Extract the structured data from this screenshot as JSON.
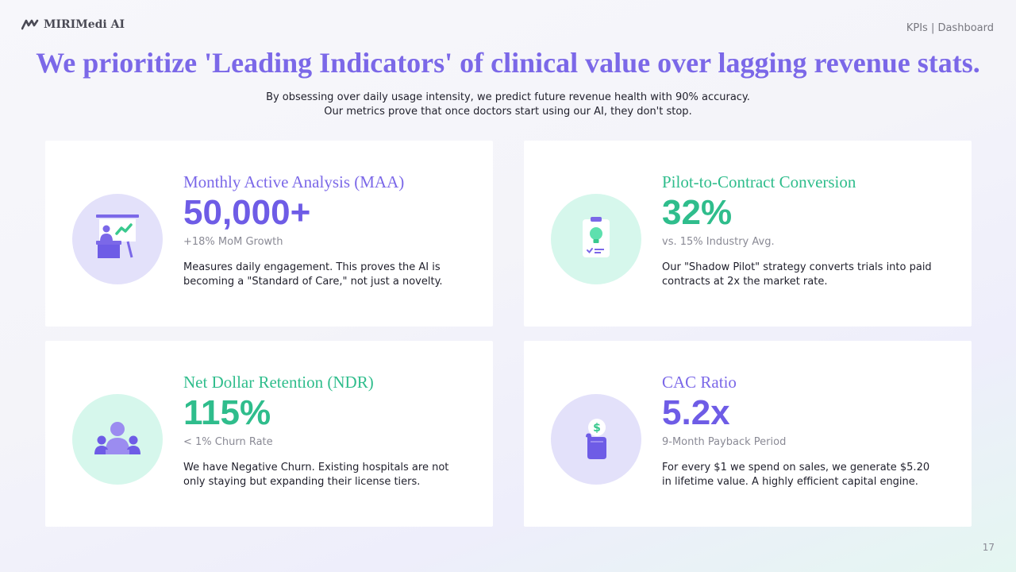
{
  "brand": {
    "name": "MIRIMedi AI",
    "color": "#7b68e8"
  },
  "header": {
    "section_label": "KPIs | Dashboard"
  },
  "headline": "We prioritize 'Leading Indicators' of clinical value over lagging revenue stats.",
  "subheadline": {
    "line1": "By obsessing over daily usage intensity, we predict future revenue health with 90% accuracy.",
    "line2": "Our metrics prove that once doctors start using our AI, they don't stop."
  },
  "cards": [
    {
      "title": "Monthly Active Analysis (MAA)",
      "metric": "50,000+",
      "sublabel": "+18% MoM Growth",
      "description": "Measures daily engagement. This proves the AI is becoming a \"Standard of Care,\" not just a novelty.",
      "icon": "presentation-board-icon",
      "accent": "#6e5ce6"
    },
    {
      "title": "Pilot-to-Contract Conversion",
      "metric": "32%",
      "sublabel": "vs. 15% Industry Avg.",
      "description": "Our \"Shadow Pilot\" strategy converts trials into paid contracts at 2x the market rate.",
      "icon": "clipboard-lightbulb-icon",
      "accent": "#2fbd8c"
    },
    {
      "title": "Net Dollar Retention (NDR)",
      "metric": "115%",
      "sublabel": "< 1% Churn Rate",
      "description": "We have Negative Churn. Existing hospitals are not only staying but expanding their license tiers.",
      "icon": "team-group-icon",
      "accent": "#2fbd8c"
    },
    {
      "title": "CAC Ratio",
      "metric": "5.2x",
      "sublabel": "9-Month Payback Period",
      "description": "For every $1 we spend on sales, we generate $5.20 in lifetime value. A highly efficient capital engine.",
      "icon": "hand-dollar-coin-icon",
      "accent": "#6e5ce6"
    }
  ],
  "footer": {
    "page_number": "17"
  }
}
